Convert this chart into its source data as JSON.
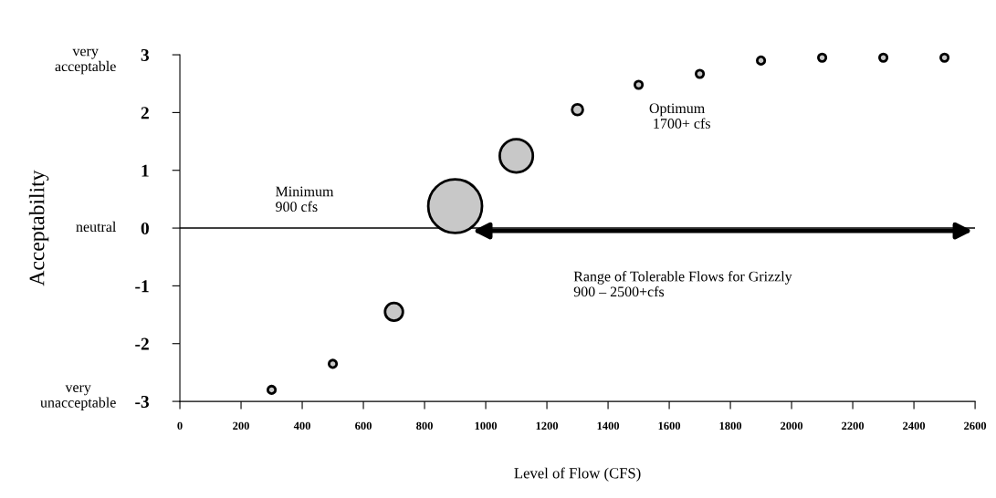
{
  "chart_data": {
    "type": "bubble",
    "xlabel": "Level of Flow (CFS)",
    "ylabel": "Acceptability",
    "x": [
      300,
      500,
      700,
      900,
      1100,
      1300,
      1500,
      1700,
      1900,
      2100,
      2300,
      2500
    ],
    "values": [
      -2.8,
      -2.35,
      -1.45,
      0.38,
      1.25,
      2.05,
      2.48,
      2.67,
      2.9,
      2.95,
      2.95,
      2.95
    ],
    "sizes": [
      0.02,
      0.02,
      0.11,
      1,
      0.38,
      0.04,
      0.02,
      0.02,
      0.02,
      0.02,
      0.02,
      0.02
    ],
    "color": "#c8c8c8",
    "xlim": [
      0,
      2600
    ],
    "xticks": [
      0,
      200,
      400,
      600,
      800,
      1000,
      1200,
      1400,
      1600,
      1800,
      2000,
      2200,
      2400,
      2600
    ],
    "ylim": [
      -3,
      3
    ],
    "yticks": [
      -3,
      -2,
      -1,
      0,
      1,
      2,
      3
    ],
    "ref_lines": [
      {
        "axis": "y",
        "value": 0,
        "color": "#000000"
      }
    ],
    "annotations": [
      "very\nacceptable",
      "neutral",
      "very\nunacceptable",
      "Minimum\n900 cfs",
      "Optimum\n 1700+ cfs",
      "Range of Tolerable Flows for Grizzly\n900 – 2500+cfs"
    ],
    "grid": false,
    "legend": false
  }
}
